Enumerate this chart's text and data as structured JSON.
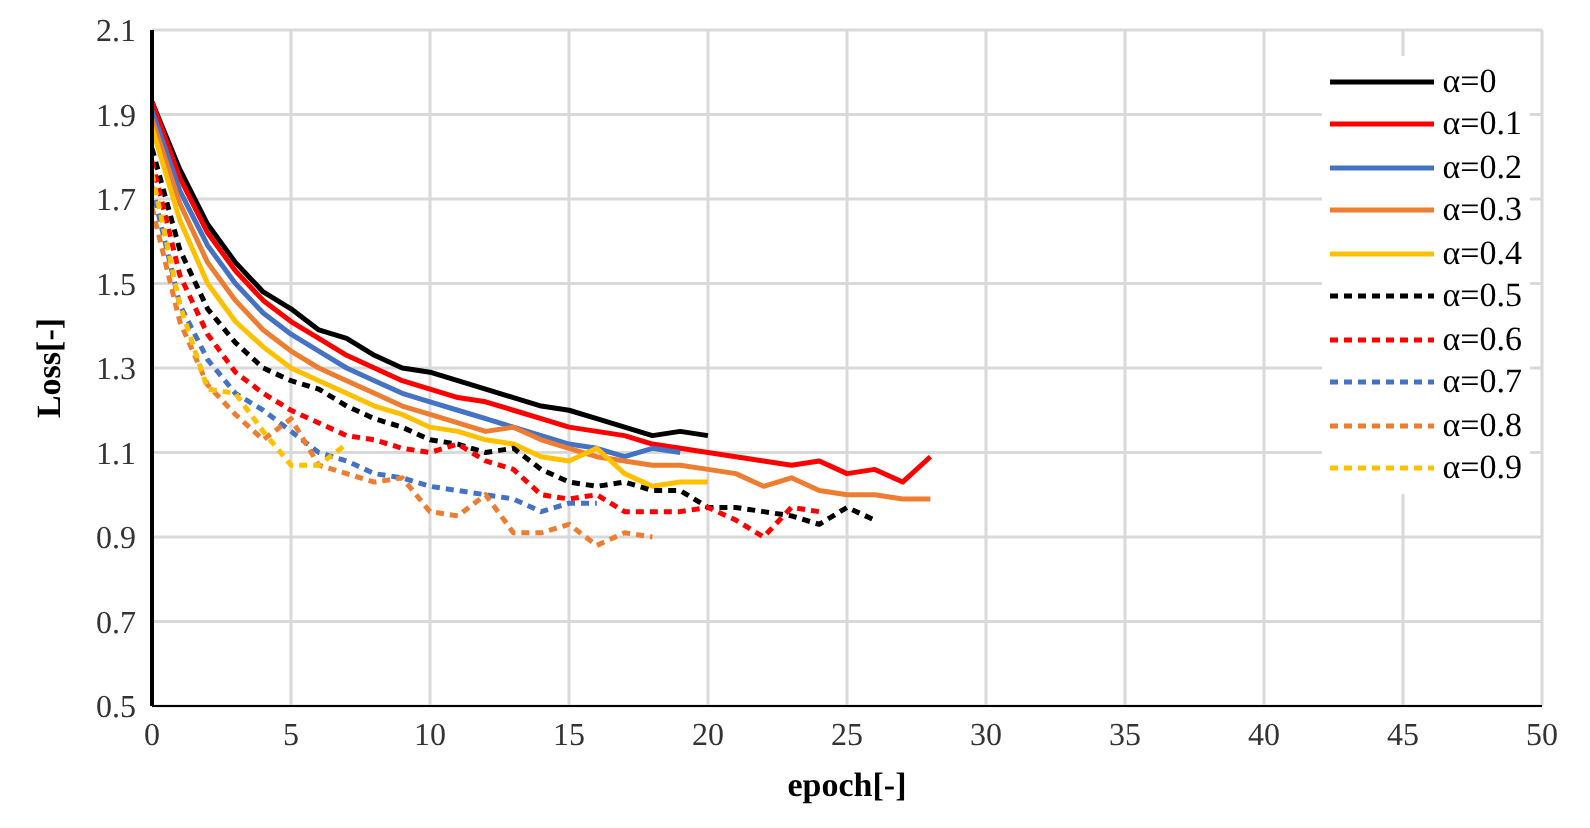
{
  "chart_data": {
    "type": "line",
    "xlabel": "epoch[-]",
    "ylabel": "Loss[-]",
    "xlim": [
      0,
      50
    ],
    "xticks": [
      0,
      5,
      10,
      15,
      20,
      25,
      30,
      35,
      40,
      45,
      50
    ],
    "ylim": [
      0.5,
      2.1
    ],
    "yticks": [
      0.5,
      0.7,
      0.9,
      1.1,
      1.3,
      1.5,
      1.7,
      1.9,
      2.1
    ],
    "grid": true,
    "legend": "top right",
    "marker": "none",
    "x": [
      0,
      1,
      2,
      3,
      4,
      5,
      6,
      7,
      8,
      9,
      10,
      11,
      12,
      13,
      14,
      15,
      16,
      17,
      18,
      19,
      20,
      21,
      22,
      23,
      24,
      25,
      26,
      27,
      28
    ],
    "series": [
      {
        "name": "α=0",
        "color": "#000000",
        "line_style": "solid",
        "values": [
          1.93,
          1.77,
          1.64,
          1.55,
          1.48,
          1.44,
          1.39,
          1.37,
          1.33,
          1.3,
          1.29,
          1.27,
          1.25,
          1.23,
          1.21,
          1.2,
          1.18,
          1.16,
          1.14,
          1.15,
          1.14,
          null,
          null,
          null,
          null,
          null,
          null,
          null,
          null
        ]
      },
      {
        "name": "α=0.1",
        "color": "#ff0000",
        "line_style": "solid",
        "values": [
          1.93,
          1.75,
          1.62,
          1.53,
          1.46,
          1.41,
          1.37,
          1.33,
          1.3,
          1.27,
          1.25,
          1.23,
          1.22,
          1.2,
          1.18,
          1.16,
          1.15,
          1.14,
          1.12,
          1.11,
          1.1,
          1.09,
          1.08,
          1.07,
          1.08,
          1.05,
          1.06,
          1.03,
          1.09
        ]
      },
      {
        "name": "α=0.2",
        "color": "#4472c4",
        "line_style": "solid",
        "values": [
          1.91,
          1.72,
          1.59,
          1.5,
          1.43,
          1.38,
          1.34,
          1.3,
          1.27,
          1.24,
          1.22,
          1.2,
          1.18,
          1.16,
          1.14,
          1.12,
          1.11,
          1.09,
          1.11,
          1.1,
          null,
          null,
          null,
          null,
          null,
          null,
          null,
          null,
          null
        ]
      },
      {
        "name": "α=0.3",
        "color": "#ed7d31",
        "line_style": "solid",
        "values": [
          1.89,
          1.69,
          1.55,
          1.46,
          1.39,
          1.34,
          1.3,
          1.27,
          1.24,
          1.21,
          1.19,
          1.17,
          1.15,
          1.16,
          1.13,
          1.11,
          1.09,
          1.08,
          1.07,
          1.07,
          1.06,
          1.05,
          1.02,
          1.04,
          1.01,
          1.0,
          1.0,
          0.99,
          0.99
        ]
      },
      {
        "name": "α=0.4",
        "color": "#ffc000",
        "line_style": "solid",
        "values": [
          1.87,
          1.65,
          1.5,
          1.41,
          1.35,
          1.3,
          1.27,
          1.24,
          1.21,
          1.19,
          1.16,
          1.15,
          1.13,
          1.12,
          1.09,
          1.08,
          1.11,
          1.05,
          1.02,
          1.03,
          1.03,
          null,
          null,
          null,
          null,
          null,
          null,
          null,
          null
        ]
      },
      {
        "name": "α=0.5",
        "color": "#000000",
        "line_style": "dashed",
        "values": [
          1.82,
          1.58,
          1.44,
          1.36,
          1.3,
          1.27,
          1.25,
          1.21,
          1.18,
          1.16,
          1.13,
          1.12,
          1.1,
          1.11,
          1.06,
          1.03,
          1.02,
          1.03,
          1.01,
          1.01,
          0.97,
          0.97,
          0.96,
          0.95,
          0.93,
          0.97,
          0.94,
          null,
          null
        ]
      },
      {
        "name": "α=0.6",
        "color": "#ff0000",
        "line_style": "dashed",
        "values": [
          1.79,
          1.52,
          1.38,
          1.29,
          1.24,
          1.2,
          1.17,
          1.14,
          1.13,
          1.11,
          1.1,
          1.12,
          1.08,
          1.06,
          1.0,
          0.99,
          1.0,
          0.96,
          0.96,
          0.96,
          0.97,
          0.94,
          0.9,
          0.97,
          0.96,
          null,
          null,
          null,
          null
        ]
      },
      {
        "name": "α=0.7",
        "color": "#4472c4",
        "line_style": "dashed",
        "values": [
          1.73,
          1.45,
          1.32,
          1.24,
          1.2,
          1.15,
          1.1,
          1.08,
          1.05,
          1.04,
          1.02,
          1.01,
          1.0,
          0.99,
          0.96,
          0.98,
          0.98,
          null,
          null,
          null,
          null,
          null,
          null,
          null,
          null,
          null,
          null,
          null,
          null
        ]
      },
      {
        "name": "α=0.8",
        "color": "#ed7d31",
        "line_style": "dashed",
        "values": [
          1.68,
          1.41,
          1.26,
          1.19,
          1.13,
          1.18,
          1.07,
          1.05,
          1.03,
          1.04,
          0.96,
          0.95,
          1.0,
          0.91,
          0.91,
          0.93,
          0.88,
          0.91,
          0.9,
          null,
          null,
          null,
          null,
          null,
          null,
          null,
          null,
          null,
          null
        ]
      },
      {
        "name": "α=0.9",
        "color": "#ffc000",
        "line_style": "dashed",
        "values": [
          1.76,
          1.45,
          1.25,
          1.24,
          1.15,
          1.07,
          1.07,
          1.12,
          null,
          null,
          null,
          null,
          null,
          null,
          null,
          null,
          null,
          null,
          null,
          null,
          null,
          null,
          null,
          null,
          null,
          null,
          null,
          null,
          null
        ]
      }
    ]
  }
}
